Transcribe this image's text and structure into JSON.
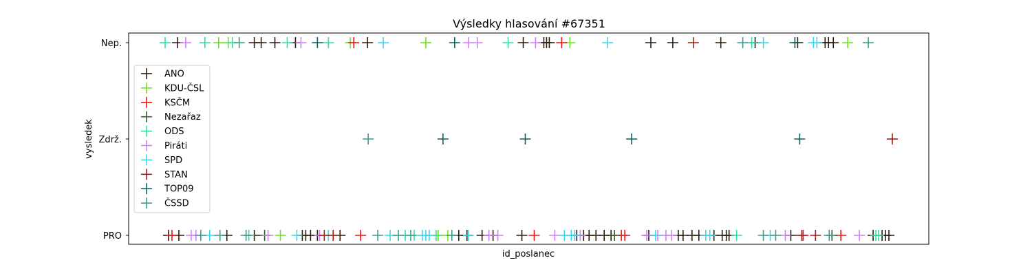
{
  "chart_data": {
    "type": "scatter",
    "title": "Výsledky hlasování #67351",
    "xlabel": "id_poslanec",
    "ylabel": "vysledek",
    "categories": [
      "PRO",
      "Zdrž.",
      "Nep."
    ],
    "x_ticks": "hidden",
    "grid": false,
    "legend_position": "center-left",
    "series": [
      {
        "name": "ANO",
        "color": "#2b1d0e",
        "points": [
          {
            "x": 18,
            "y": "Nep."
          },
          {
            "x": 130,
            "y": "Nep."
          },
          {
            "x": 140,
            "y": "Nep."
          },
          {
            "x": 160,
            "y": "Nep."
          },
          {
            "x": 190,
            "y": "Nep."
          },
          {
            "x": 295,
            "y": "Nep."
          },
          {
            "x": 522,
            "y": "Nep."
          },
          {
            "x": 552,
            "y": "Nep."
          },
          {
            "x": 556,
            "y": "Nep."
          },
          {
            "x": 560,
            "y": "Nep."
          },
          {
            "x": 708,
            "y": "Nep."
          },
          {
            "x": 740,
            "y": "Nep."
          },
          {
            "x": 810,
            "y": "Nep."
          },
          {
            "x": 860,
            "y": "Nep."
          },
          {
            "x": 922,
            "y": "Nep."
          },
          {
            "x": 962,
            "y": "Nep."
          },
          {
            "x": 967,
            "y": "Nep."
          },
          {
            "x": 974,
            "y": "Nep."
          },
          {
            "x": 5,
            "y": "PRO"
          },
          {
            "x": 20,
            "y": "PRO"
          },
          {
            "x": 90,
            "y": "PRO"
          },
          {
            "x": 130,
            "y": "PRO"
          },
          {
            "x": 200,
            "y": "PRO"
          },
          {
            "x": 205,
            "y": "PRO"
          },
          {
            "x": 212,
            "y": "PRO"
          },
          {
            "x": 222,
            "y": "PRO"
          },
          {
            "x": 255,
            "y": "PRO"
          },
          {
            "x": 428,
            "y": "PRO"
          },
          {
            "x": 440,
            "y": "PRO"
          },
          {
            "x": 462,
            "y": "PRO"
          },
          {
            "x": 478,
            "y": "PRO"
          },
          {
            "x": 520,
            "y": "PRO"
          },
          {
            "x": 600,
            "y": "PRO"
          },
          {
            "x": 610,
            "y": "PRO"
          },
          {
            "x": 618,
            "y": "PRO"
          },
          {
            "x": 628,
            "y": "PRO"
          },
          {
            "x": 640,
            "y": "PRO"
          },
          {
            "x": 650,
            "y": "PRO"
          },
          {
            "x": 705,
            "y": "PRO"
          },
          {
            "x": 748,
            "y": "PRO"
          },
          {
            "x": 755,
            "y": "PRO"
          },
          {
            "x": 768,
            "y": "PRO"
          },
          {
            "x": 778,
            "y": "PRO"
          },
          {
            "x": 800,
            "y": "PRO"
          },
          {
            "x": 812,
            "y": "PRO"
          },
          {
            "x": 818,
            "y": "PRO"
          },
          {
            "x": 822,
            "y": "PRO"
          },
          {
            "x": 912,
            "y": "PRO"
          },
          {
            "x": 1032,
            "y": "PRO"
          },
          {
            "x": 1045,
            "y": "PRO"
          },
          {
            "x": 1050,
            "y": "PRO"
          },
          {
            "x": 1055,
            "y": "PRO"
          }
        ]
      },
      {
        "name": "KDU-ČSL",
        "color": "#6ee01b",
        "points": [
          {
            "x": 78,
            "y": "Nep."
          },
          {
            "x": 92,
            "y": "Nep."
          },
          {
            "x": 270,
            "y": "Nep."
          },
          {
            "x": 380,
            "y": "Nep."
          },
          {
            "x": 590,
            "y": "Nep."
          },
          {
            "x": 995,
            "y": "Nep."
          },
          {
            "x": 168,
            "y": "PRO"
          },
          {
            "x": 398,
            "y": "PRO"
          },
          {
            "x": 412,
            "y": "PRO"
          }
        ]
      },
      {
        "name": "KSČM",
        "color": "#ee1111",
        "points": [
          {
            "x": 275,
            "y": "Nep."
          },
          {
            "x": 578,
            "y": "Nep."
          },
          {
            "x": 10,
            "y": "PRO"
          },
          {
            "x": 285,
            "y": "PRO"
          },
          {
            "x": 538,
            "y": "PRO"
          },
          {
            "x": 665,
            "y": "PRO"
          },
          {
            "x": 670,
            "y": "PRO"
          },
          {
            "x": 930,
            "y": "PRO"
          },
          {
            "x": 985,
            "y": "PRO"
          }
        ]
      },
      {
        "name": "Nezařaz",
        "color": "#2f5f2a",
        "points": [
          {
            "x": 145,
            "y": "PRO"
          },
          {
            "x": 655,
            "y": "PRO"
          },
          {
            "x": 972,
            "y": "PRO"
          }
        ]
      },
      {
        "name": "ODS",
        "color": "#2ee0a0",
        "points": [
          {
            "x": 0,
            "y": "Nep."
          },
          {
            "x": 58,
            "y": "Nep."
          },
          {
            "x": 98,
            "y": "Nep."
          },
          {
            "x": 178,
            "y": "Nep."
          },
          {
            "x": 238,
            "y": "Nep."
          },
          {
            "x": 500,
            "y": "Nep."
          },
          {
            "x": 855,
            "y": "Nep."
          },
          {
            "x": 122,
            "y": "PRO"
          },
          {
            "x": 350,
            "y": "PRO"
          },
          {
            "x": 363,
            "y": "PRO"
          },
          {
            "x": 395,
            "y": "PRO"
          },
          {
            "x": 833,
            "y": "PRO"
          },
          {
            "x": 1036,
            "y": "PRO"
          },
          {
            "x": 1040,
            "y": "PRO"
          }
        ]
      },
      {
        "name": "Piráti",
        "color": "#d27ef5",
        "points": [
          {
            "x": 30,
            "y": "Nep."
          },
          {
            "x": 198,
            "y": "Nep."
          },
          {
            "x": 442,
            "y": "Nep."
          },
          {
            "x": 455,
            "y": "Nep."
          },
          {
            "x": 540,
            "y": "Nep."
          },
          {
            "x": 38,
            "y": "PRO"
          },
          {
            "x": 45,
            "y": "PRO"
          },
          {
            "x": 150,
            "y": "PRO"
          },
          {
            "x": 225,
            "y": "PRO"
          },
          {
            "x": 472,
            "y": "PRO"
          },
          {
            "x": 485,
            "y": "PRO"
          },
          {
            "x": 568,
            "y": "PRO"
          },
          {
            "x": 605,
            "y": "PRO"
          },
          {
            "x": 702,
            "y": "PRO"
          },
          {
            "x": 718,
            "y": "PRO"
          },
          {
            "x": 730,
            "y": "PRO"
          },
          {
            "x": 738,
            "y": "PRO"
          },
          {
            "x": 904,
            "y": "PRO"
          },
          {
            "x": 1012,
            "y": "PRO"
          }
        ]
      },
      {
        "name": "SPD",
        "color": "#3ad6ea",
        "points": [
          {
            "x": 318,
            "y": "Nep."
          },
          {
            "x": 645,
            "y": "Nep."
          },
          {
            "x": 872,
            "y": "Nep."
          },
          {
            "x": 945,
            "y": "Nep."
          },
          {
            "x": 950,
            "y": "Nep."
          },
          {
            "x": 65,
            "y": "PRO"
          },
          {
            "x": 192,
            "y": "PRO"
          },
          {
            "x": 238,
            "y": "PRO"
          },
          {
            "x": 328,
            "y": "PRO"
          },
          {
            "x": 375,
            "y": "PRO"
          },
          {
            "x": 380,
            "y": "PRO"
          },
          {
            "x": 385,
            "y": "PRO"
          },
          {
            "x": 442,
            "y": "PRO"
          },
          {
            "x": 582,
            "y": "PRO"
          },
          {
            "x": 592,
            "y": "PRO"
          },
          {
            "x": 597,
            "y": "PRO"
          },
          {
            "x": 715,
            "y": "PRO"
          },
          {
            "x": 788,
            "y": "PRO"
          },
          {
            "x": 794,
            "y": "PRO"
          },
          {
            "x": 882,
            "y": "PRO"
          }
        ]
      },
      {
        "name": "STAN",
        "color": "#a61b10",
        "points": [
          {
            "x": 770,
            "y": "Nep."
          },
          {
            "x": 1060,
            "y": "Zdrž."
          },
          {
            "x": 232,
            "y": "PRO"
          },
          {
            "x": 245,
            "y": "PRO"
          },
          {
            "x": 928,
            "y": "PRO"
          },
          {
            "x": 948,
            "y": "PRO"
          }
        ]
      },
      {
        "name": "TOP09",
        "color": "#0e6060",
        "points": [
          {
            "x": 222,
            "y": "Nep."
          },
          {
            "x": 422,
            "y": "Nep."
          },
          {
            "x": 918,
            "y": "Nep."
          },
          {
            "x": 405,
            "y": "Zdrž."
          },
          {
            "x": 525,
            "y": "Zdrž."
          },
          {
            "x": 680,
            "y": "Zdrž."
          },
          {
            "x": 925,
            "y": "Zdrž."
          }
        ]
      },
      {
        "name": "ČSSD",
        "color": "#3a9b8c",
        "points": [
          {
            "x": 108,
            "y": "Nep."
          },
          {
            "x": 842,
            "y": "Nep."
          },
          {
            "x": 1025,
            "y": "Nep."
          },
          {
            "x": 296,
            "y": "Zdrž."
          },
          {
            "x": 52,
            "y": "PRO"
          },
          {
            "x": 80,
            "y": "PRO"
          },
          {
            "x": 118,
            "y": "PRO"
          },
          {
            "x": 310,
            "y": "PRO"
          },
          {
            "x": 340,
            "y": "PRO"
          },
          {
            "x": 358,
            "y": "PRO"
          },
          {
            "x": 418,
            "y": "PRO"
          },
          {
            "x": 872,
            "y": "PRO"
          },
          {
            "x": 890,
            "y": "PRO"
          },
          {
            "x": 968,
            "y": "PRO"
          }
        ]
      }
    ]
  }
}
